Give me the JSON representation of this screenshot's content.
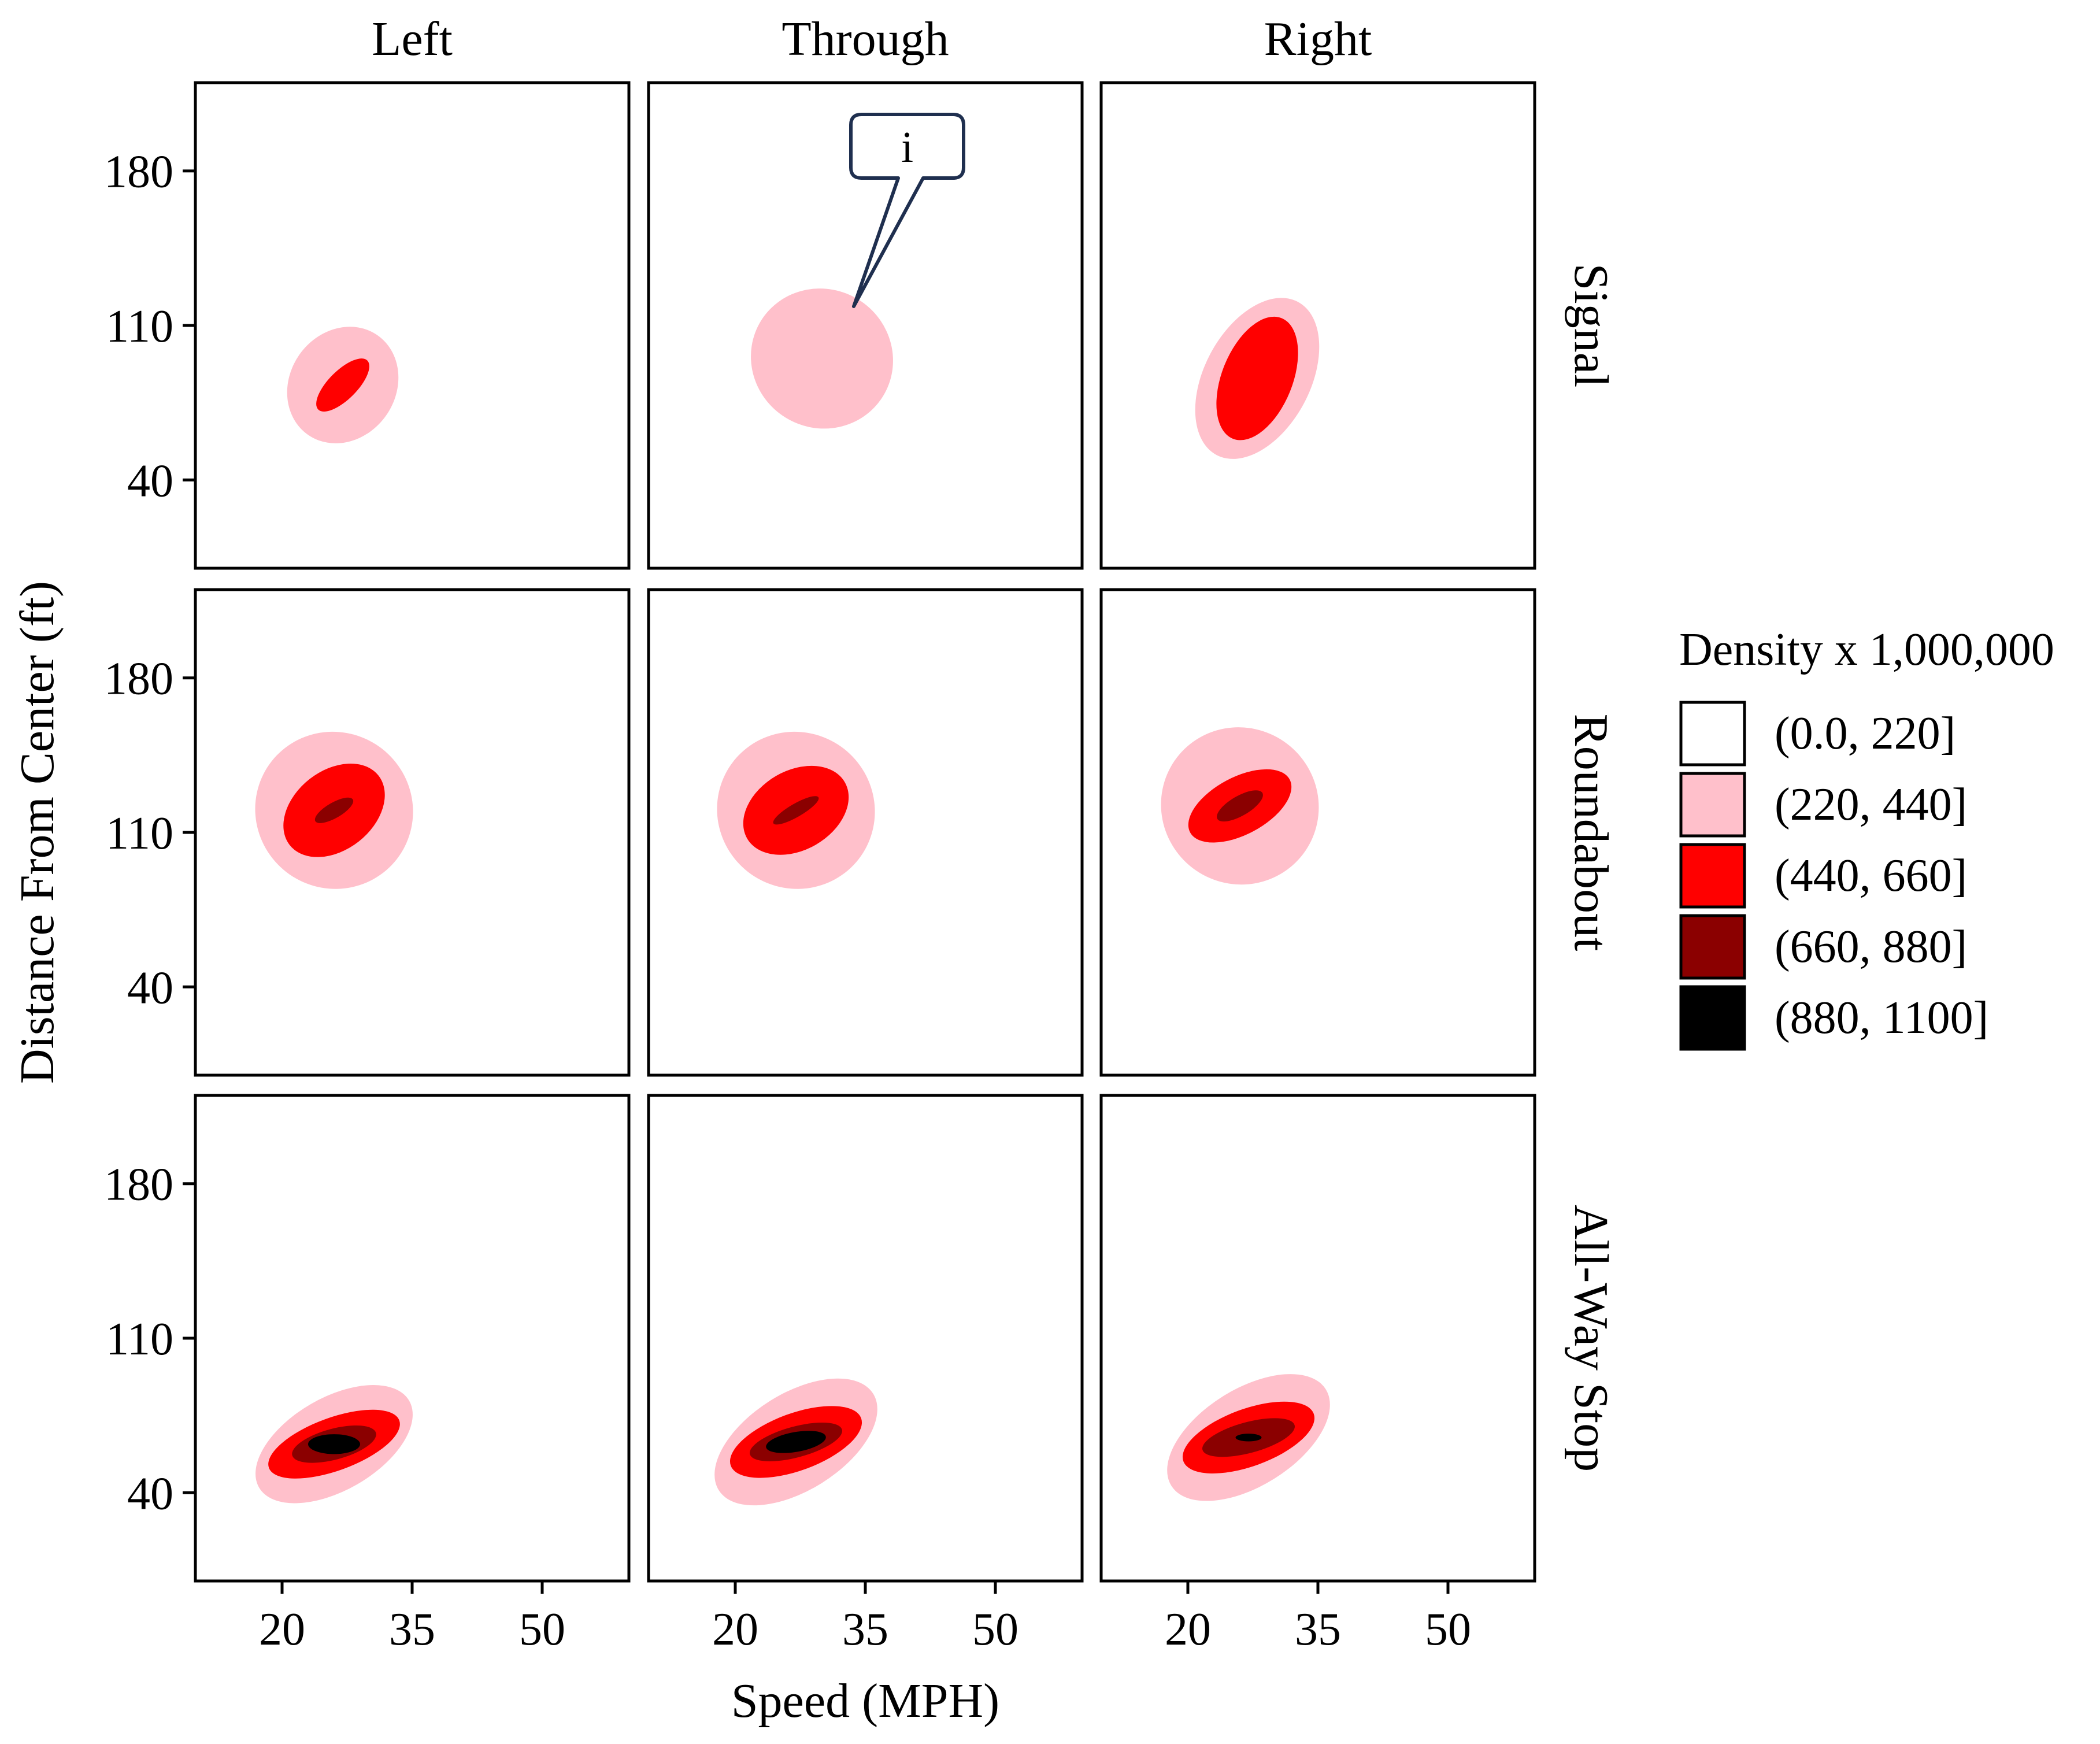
{
  "chart_data": {
    "type": "contour",
    "title": "",
    "xlabel": "Speed (MPH)",
    "ylabel": "Distance From Center (ft)",
    "x_ticks": [
      20,
      35,
      50
    ],
    "y_ticks": [
      40,
      110,
      180
    ],
    "xlim": [
      10,
      60
    ],
    "ylim": [
      0,
      220
    ],
    "columns": [
      "Left",
      "Through",
      "Right"
    ],
    "rows": [
      "Signal",
      "Roundabout",
      "All-Way Stop"
    ],
    "legend": {
      "title": "Density x 1,000,000",
      "entries": [
        {
          "label": "(0.0, 220]",
          "color": "#ffffff"
        },
        {
          "label": "(220, 440]",
          "color": "#ffc0cb"
        },
        {
          "label": "(440, 660]",
          "color": "#ff0000"
        },
        {
          "label": "(660, 880]",
          "color": "#8b0000"
        },
        {
          "label": "(880, 1100]",
          "color": "#000000"
        }
      ]
    },
    "annotation": {
      "text": "i",
      "panel": "Signal / Through"
    },
    "panels": [
      {
        "row": "Signal",
        "col": "Left",
        "center": [
          27,
          83
        ],
        "levels": [
          {
            "band": 1,
            "sx": 7,
            "sy": 48,
            "rot": 55
          },
          {
            "band": 2,
            "sx": 4,
            "sy": 13,
            "rot": 45
          }
        ]
      },
      {
        "row": "Signal",
        "col": "Through",
        "center": [
          30,
          95
        ],
        "levels": [
          {
            "band": 1,
            "sx": 8,
            "sy": 65,
            "rot": 58
          }
        ]
      },
      {
        "row": "Signal",
        "col": "Right",
        "center": [
          28,
          86
        ],
        "levels": [
          {
            "band": 1,
            "sx": 10,
            "sy": 48,
            "rot": 62
          },
          {
            "band": 2,
            "sx": 7.5,
            "sy": 32,
            "rot": 68
          }
        ]
      },
      {
        "row": "Roundabout",
        "col": "Left",
        "center": [
          26,
          120
        ],
        "levels": [
          {
            "band": 1,
            "sx": 9,
            "sy": 72,
            "rot": 52
          },
          {
            "band": 2,
            "sx": 6.5,
            "sy": 36,
            "rot": 38
          },
          {
            "band": 3,
            "sx": 2.5,
            "sy": 7,
            "rot": 30
          }
        ]
      },
      {
        "row": "Roundabout",
        "col": "Through",
        "center": [
          27,
          120
        ],
        "levels": [
          {
            "band": 1,
            "sx": 9,
            "sy": 72,
            "rot": 52
          },
          {
            "band": 2,
            "sx": 6.5,
            "sy": 36,
            "rot": 30
          },
          {
            "band": 3,
            "sx": 3,
            "sy": 6,
            "rot": 30
          }
        ]
      },
      {
        "row": "Roundabout",
        "col": "Right",
        "center": [
          26,
          122
        ],
        "levels": [
          {
            "band": 1,
            "sx": 9,
            "sy": 72,
            "rot": 50
          },
          {
            "band": 2,
            "sx": 6.5,
            "sy": 26,
            "rot": 28
          },
          {
            "band": 3,
            "sx": 3,
            "sy": 9,
            "rot": 30
          }
        ]
      },
      {
        "row": "All-Way Stop",
        "col": "Left",
        "center": [
          26,
          62
        ],
        "levels": [
          {
            "band": 1,
            "sx": 10,
            "sy": 42,
            "rot": 30
          },
          {
            "band": 2,
            "sx": 8,
            "sy": 24,
            "rot": 20
          },
          {
            "band": 3,
            "sx": 5,
            "sy": 14,
            "rot": 15
          },
          {
            "band": 4,
            "sx": 3,
            "sy": 9,
            "rot": 0
          }
        ]
      },
      {
        "row": "All-Way Stop",
        "col": "Through",
        "center": [
          27,
          63
        ],
        "levels": [
          {
            "band": 1,
            "sx": 10.5,
            "sy": 44,
            "rot": 32
          },
          {
            "band": 2,
            "sx": 8,
            "sy": 26,
            "rot": 20
          },
          {
            "band": 3,
            "sx": 5.5,
            "sy": 14,
            "rot": 15
          },
          {
            "band": 4,
            "sx": 3.5,
            "sy": 9,
            "rot": 10
          }
        ]
      },
      {
        "row": "All-Way Stop",
        "col": "Right",
        "center": [
          27,
          65
        ],
        "levels": [
          {
            "band": 1,
            "sx": 10.5,
            "sy": 44,
            "rot": 32
          },
          {
            "band": 2,
            "sx": 8,
            "sy": 26,
            "rot": 20
          },
          {
            "band": 3,
            "sx": 5.5,
            "sy": 14,
            "rot": 15
          },
          {
            "band": 4,
            "sx": 1.5,
            "sy": 3.5,
            "rot": 0
          }
        ]
      }
    ]
  }
}
